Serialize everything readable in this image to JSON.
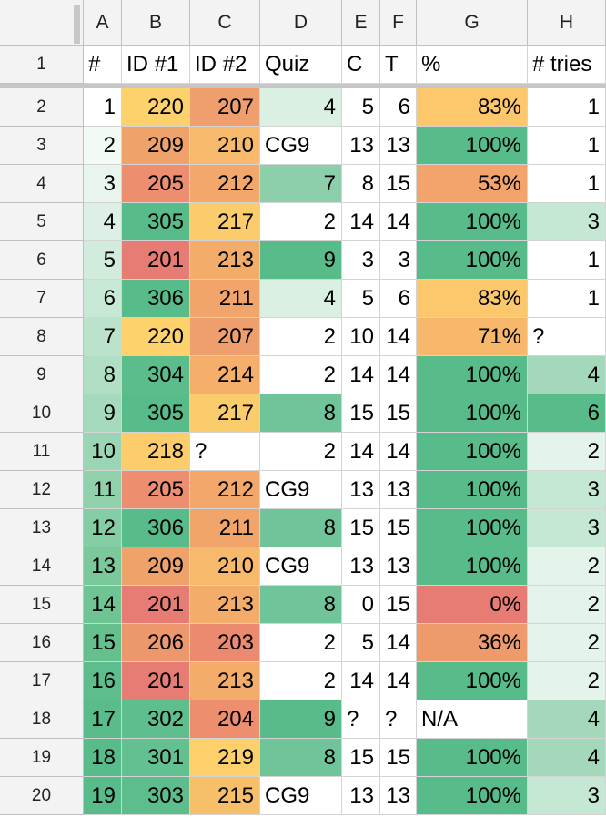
{
  "columns": [
    "A",
    "B",
    "C",
    "D",
    "E",
    "F",
    "G",
    "H"
  ],
  "header_row": {
    "row_number": "1",
    "cells": [
      "#",
      "ID #1",
      "ID #2",
      "Quiz",
      "C",
      "T",
      "%",
      "# tries"
    ]
  },
  "colors": {
    "green_dark": "#57bb8a",
    "white": "#ffffff",
    "red": "#e67c73",
    "orange": "#f4a26b",
    "yellow": "#ffd666"
  },
  "rows": [
    {
      "row_number": "2",
      "cells": [
        {
          "v": "1",
          "bg": "#ffffff"
        },
        {
          "v": "220",
          "bg": "#fdd26c"
        },
        {
          "v": "207",
          "bg": "#ef9e6d"
        },
        {
          "v": "4",
          "bg": "#d9f0e3"
        },
        {
          "v": "5",
          "bg": "#ffffff"
        },
        {
          "v": "6",
          "bg": "#ffffff"
        },
        {
          "v": "83%",
          "bg": "#fcc86b"
        },
        {
          "v": "1",
          "bg": "#ffffff"
        }
      ]
    },
    {
      "row_number": "3",
      "cells": [
        {
          "v": "2",
          "bg": "#f2faf5"
        },
        {
          "v": "209",
          "bg": "#f0a26b"
        },
        {
          "v": "210",
          "bg": "#f7b96b"
        },
        {
          "v": "CG9",
          "bg": "#ffffff",
          "t": true
        },
        {
          "v": "13",
          "bg": "#ffffff"
        },
        {
          "v": "13",
          "bg": "#ffffff"
        },
        {
          "v": "100%",
          "bg": "#57bb8a"
        },
        {
          "v": "1",
          "bg": "#ffffff"
        }
      ]
    },
    {
      "row_number": "4",
      "cells": [
        {
          "v": "3",
          "bg": "#e7f5ed"
        },
        {
          "v": "205",
          "bg": "#ec8e6f"
        },
        {
          "v": "212",
          "bg": "#f3a76b"
        },
        {
          "v": "7",
          "bg": "#8ccfaa"
        },
        {
          "v": "8",
          "bg": "#ffffff"
        },
        {
          "v": "15",
          "bg": "#ffffff"
        },
        {
          "v": "53%",
          "bg": "#f2a46c"
        },
        {
          "v": "1",
          "bg": "#ffffff"
        }
      ]
    },
    {
      "row_number": "5",
      "cells": [
        {
          "v": "4",
          "bg": "#dcf0e5"
        },
        {
          "v": "305",
          "bg": "#58bb8a"
        },
        {
          "v": "217",
          "bg": "#fbcc6b"
        },
        {
          "v": "2",
          "bg": "#ffffff"
        },
        {
          "v": "14",
          "bg": "#ffffff"
        },
        {
          "v": "14",
          "bg": "#ffffff"
        },
        {
          "v": "100%",
          "bg": "#57bb8a"
        },
        {
          "v": "3",
          "bg": "#c5e8d4"
        }
      ]
    },
    {
      "row_number": "6",
      "cells": [
        {
          "v": "5",
          "bg": "#d1ecdd"
        },
        {
          "v": "201",
          "bg": "#e67c73"
        },
        {
          "v": "213",
          "bg": "#f4ac6b"
        },
        {
          "v": "9",
          "bg": "#57bb8a"
        },
        {
          "v": "3",
          "bg": "#ffffff"
        },
        {
          "v": "3",
          "bg": "#ffffff"
        },
        {
          "v": "100%",
          "bg": "#57bb8a"
        },
        {
          "v": "1",
          "bg": "#ffffff"
        }
      ]
    },
    {
      "row_number": "7",
      "cells": [
        {
          "v": "6",
          "bg": "#c6e8d5"
        },
        {
          "v": "306",
          "bg": "#57bb8a"
        },
        {
          "v": "211",
          "bg": "#f1a56b"
        },
        {
          "v": "4",
          "bg": "#d9f0e3"
        },
        {
          "v": "5",
          "bg": "#ffffff"
        },
        {
          "v": "6",
          "bg": "#ffffff"
        },
        {
          "v": "83%",
          "bg": "#fcc86b"
        },
        {
          "v": "1",
          "bg": "#ffffff"
        }
      ]
    },
    {
      "row_number": "8",
      "cells": [
        {
          "v": "7",
          "bg": "#bbe3cc"
        },
        {
          "v": "220",
          "bg": "#fdd26c"
        },
        {
          "v": "207",
          "bg": "#ef9e6d"
        },
        {
          "v": "2",
          "bg": "#ffffff"
        },
        {
          "v": "10",
          "bg": "#ffffff"
        },
        {
          "v": "14",
          "bg": "#ffffff"
        },
        {
          "v": "71%",
          "bg": "#f7b86c"
        },
        {
          "v": "?",
          "bg": "#ffffff",
          "t": true
        }
      ]
    },
    {
      "row_number": "9",
      "cells": [
        {
          "v": "8",
          "bg": "#b0dfc4"
        },
        {
          "v": "304",
          "bg": "#5bbd8c"
        },
        {
          "v": "214",
          "bg": "#f5af6b"
        },
        {
          "v": "2",
          "bg": "#ffffff"
        },
        {
          "v": "14",
          "bg": "#ffffff"
        },
        {
          "v": "14",
          "bg": "#ffffff"
        },
        {
          "v": "100%",
          "bg": "#57bb8a"
        },
        {
          "v": "4",
          "bg": "#a3d9ba"
        }
      ]
    },
    {
      "row_number": "10",
      "cells": [
        {
          "v": "9",
          "bg": "#a5dabc"
        },
        {
          "v": "305",
          "bg": "#58bb8a"
        },
        {
          "v": "217",
          "bg": "#fbcc6b"
        },
        {
          "v": "8",
          "bg": "#70c499"
        },
        {
          "v": "15",
          "bg": "#ffffff"
        },
        {
          "v": "15",
          "bg": "#ffffff"
        },
        {
          "v": "100%",
          "bg": "#57bb8a"
        },
        {
          "v": "6",
          "bg": "#57bb8a"
        }
      ]
    },
    {
      "row_number": "11",
      "cells": [
        {
          "v": "10",
          "bg": "#9bd6b4"
        },
        {
          "v": "218",
          "bg": "#fdcc6b"
        },
        {
          "v": "?",
          "bg": "#ffffff",
          "t": true
        },
        {
          "v": "2",
          "bg": "#ffffff"
        },
        {
          "v": "14",
          "bg": "#ffffff"
        },
        {
          "v": "14",
          "bg": "#ffffff"
        },
        {
          "v": "100%",
          "bg": "#57bb8a"
        },
        {
          "v": "2",
          "bg": "#e4f4eb"
        }
      ]
    },
    {
      "row_number": "12",
      "cells": [
        {
          "v": "11",
          "bg": "#90d1ac"
        },
        {
          "v": "205",
          "bg": "#ec8e6f"
        },
        {
          "v": "212",
          "bg": "#f3a76b"
        },
        {
          "v": "CG9",
          "bg": "#ffffff",
          "t": true
        },
        {
          "v": "13",
          "bg": "#ffffff"
        },
        {
          "v": "13",
          "bg": "#ffffff"
        },
        {
          "v": "100%",
          "bg": "#57bb8a"
        },
        {
          "v": "3",
          "bg": "#c5e8d4"
        }
      ]
    },
    {
      "row_number": "13",
      "cells": [
        {
          "v": "12",
          "bg": "#85cda4"
        },
        {
          "v": "306",
          "bg": "#57bb8a"
        },
        {
          "v": "211",
          "bg": "#f1a56b"
        },
        {
          "v": "8",
          "bg": "#70c499"
        },
        {
          "v": "15",
          "bg": "#ffffff"
        },
        {
          "v": "15",
          "bg": "#ffffff"
        },
        {
          "v": "100%",
          "bg": "#57bb8a"
        },
        {
          "v": "3",
          "bg": "#c5e8d4"
        }
      ]
    },
    {
      "row_number": "14",
      "cells": [
        {
          "v": "13",
          "bg": "#7ac89c"
        },
        {
          "v": "209",
          "bg": "#f0a26b"
        },
        {
          "v": "210",
          "bg": "#f7b96b"
        },
        {
          "v": "CG9",
          "bg": "#ffffff",
          "t": true
        },
        {
          "v": "13",
          "bg": "#ffffff"
        },
        {
          "v": "13",
          "bg": "#ffffff"
        },
        {
          "v": "100%",
          "bg": "#57bb8a"
        },
        {
          "v": "2",
          "bg": "#e4f4eb"
        }
      ]
    },
    {
      "row_number": "15",
      "cells": [
        {
          "v": "14",
          "bg": "#6fc494"
        },
        {
          "v": "201",
          "bg": "#e67c73"
        },
        {
          "v": "213",
          "bg": "#f4ac6b"
        },
        {
          "v": "8",
          "bg": "#70c499"
        },
        {
          "v": "0",
          "bg": "#ffffff"
        },
        {
          "v": "15",
          "bg": "#ffffff"
        },
        {
          "v": "0%",
          "bg": "#e67c73"
        },
        {
          "v": "2",
          "bg": "#e4f4eb"
        }
      ]
    },
    {
      "row_number": "16",
      "cells": [
        {
          "v": "15",
          "bg": "#65c08e"
        },
        {
          "v": "206",
          "bg": "#ed976d"
        },
        {
          "v": "203",
          "bg": "#ec8a6f"
        },
        {
          "v": "2",
          "bg": "#ffffff"
        },
        {
          "v": "5",
          "bg": "#ffffff"
        },
        {
          "v": "14",
          "bg": "#ffffff"
        },
        {
          "v": "36%",
          "bg": "#ee9a6c"
        },
        {
          "v": "2",
          "bg": "#e4f4eb"
        }
      ]
    },
    {
      "row_number": "17",
      "cells": [
        {
          "v": "16",
          "bg": "#5dbd8c"
        },
        {
          "v": "201",
          "bg": "#e67c73"
        },
        {
          "v": "213",
          "bg": "#f4ac6b"
        },
        {
          "v": "2",
          "bg": "#ffffff"
        },
        {
          "v": "14",
          "bg": "#ffffff"
        },
        {
          "v": "14",
          "bg": "#ffffff"
        },
        {
          "v": "100%",
          "bg": "#57bb8a"
        },
        {
          "v": "2",
          "bg": "#e4f4eb"
        }
      ]
    },
    {
      "row_number": "18",
      "cells": [
        {
          "v": "17",
          "bg": "#5abc8b"
        },
        {
          "v": "302",
          "bg": "#5fbe8d"
        },
        {
          "v": "204",
          "bg": "#ed8e6e"
        },
        {
          "v": "9",
          "bg": "#57bb8a"
        },
        {
          "v": "?",
          "bg": "#ffffff",
          "t": true
        },
        {
          "v": "?",
          "bg": "#ffffff",
          "t": true
        },
        {
          "v": "N/A",
          "bg": "#ffffff",
          "t": true
        },
        {
          "v": "4",
          "bg": "#a3d9ba"
        }
      ]
    },
    {
      "row_number": "19",
      "cells": [
        {
          "v": "18",
          "bg": "#58bb8a"
        },
        {
          "v": "301",
          "bg": "#63c090"
        },
        {
          "v": "219",
          "bg": "#fdd06c"
        },
        {
          "v": "8",
          "bg": "#70c499"
        },
        {
          "v": "15",
          "bg": "#ffffff"
        },
        {
          "v": "15",
          "bg": "#ffffff"
        },
        {
          "v": "100%",
          "bg": "#57bb8a"
        },
        {
          "v": "4",
          "bg": "#a3d9ba"
        }
      ]
    },
    {
      "row_number": "20",
      "cells": [
        {
          "v": "19",
          "bg": "#57bb8a"
        },
        {
          "v": "303",
          "bg": "#5dbd8c"
        },
        {
          "v": "215",
          "bg": "#f8bf6b"
        },
        {
          "v": "CG9",
          "bg": "#ffffff",
          "t": true
        },
        {
          "v": "13",
          "bg": "#ffffff"
        },
        {
          "v": "13",
          "bg": "#ffffff"
        },
        {
          "v": "100%",
          "bg": "#57bb8a"
        },
        {
          "v": "3",
          "bg": "#c5e8d4"
        }
      ]
    }
  ]
}
